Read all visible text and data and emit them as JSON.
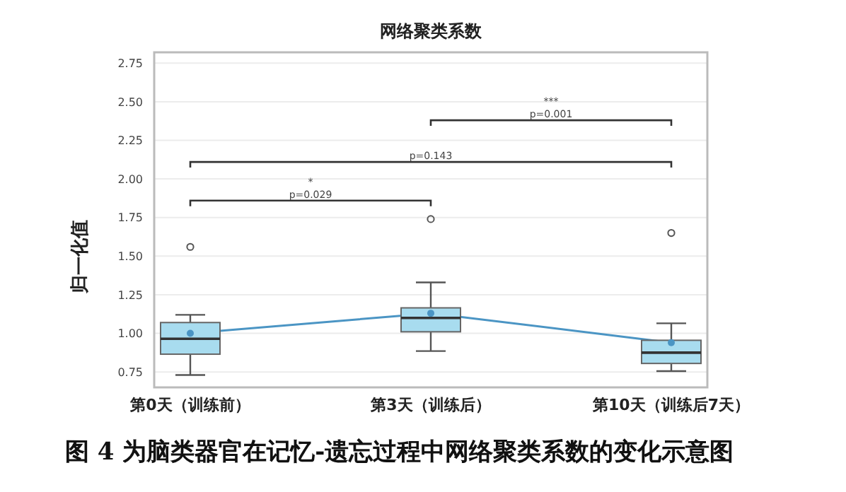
{
  "chart_data": {
    "type": "box",
    "title": "网络聚类系数",
    "ylabel": "归一化值",
    "categories": [
      "第0天（训练前）",
      "第3天（训练后）",
      "第10天（训练后7天）"
    ],
    "boxes": [
      {
        "low": 0.73,
        "q1": 0.865,
        "median": 0.965,
        "q3": 1.07,
        "high": 1.12,
        "mean": 1.0,
        "outliers": [
          1.56
        ]
      },
      {
        "low": 0.885,
        "q1": 1.01,
        "median": 1.1,
        "q3": 1.165,
        "high": 1.33,
        "mean": 1.13,
        "outliers": [
          1.74
        ]
      },
      {
        "low": 0.755,
        "q1": 0.805,
        "median": 0.875,
        "q3": 0.955,
        "high": 1.065,
        "mean": 0.94,
        "outliers": [
          1.65
        ]
      }
    ],
    "color": "#a8dcef",
    "series": [
      {
        "type": "line",
        "color": "#4b95c4",
        "values": [
          1.0,
          1.13,
          0.94
        ]
      }
    ],
    "ylim": [
      0.65,
      2.82
    ],
    "yticks": [
      {
        "value": 0.75,
        "label": "0.75"
      },
      {
        "value": 1,
        "label": "1.00"
      },
      {
        "value": 1.25,
        "label": "1.25"
      },
      {
        "value": 1.5,
        "label": "1.50"
      },
      {
        "value": 1.75,
        "label": "1.75"
      },
      {
        "value": 2,
        "label": "2.00"
      },
      {
        "value": 2.25,
        "label": "2.25"
      },
      {
        "value": 2.5,
        "label": "2.50"
      },
      {
        "value": 2.75,
        "label": "2.75"
      }
    ],
    "grid": "y",
    "annotations": [
      "*",
      "p=0.029",
      "p=0.143",
      "***",
      "p=0.001",
      "图 4 为脑类器官在记忆-遗忘过程中网络聚类系数的变化示意图"
    ]
  }
}
